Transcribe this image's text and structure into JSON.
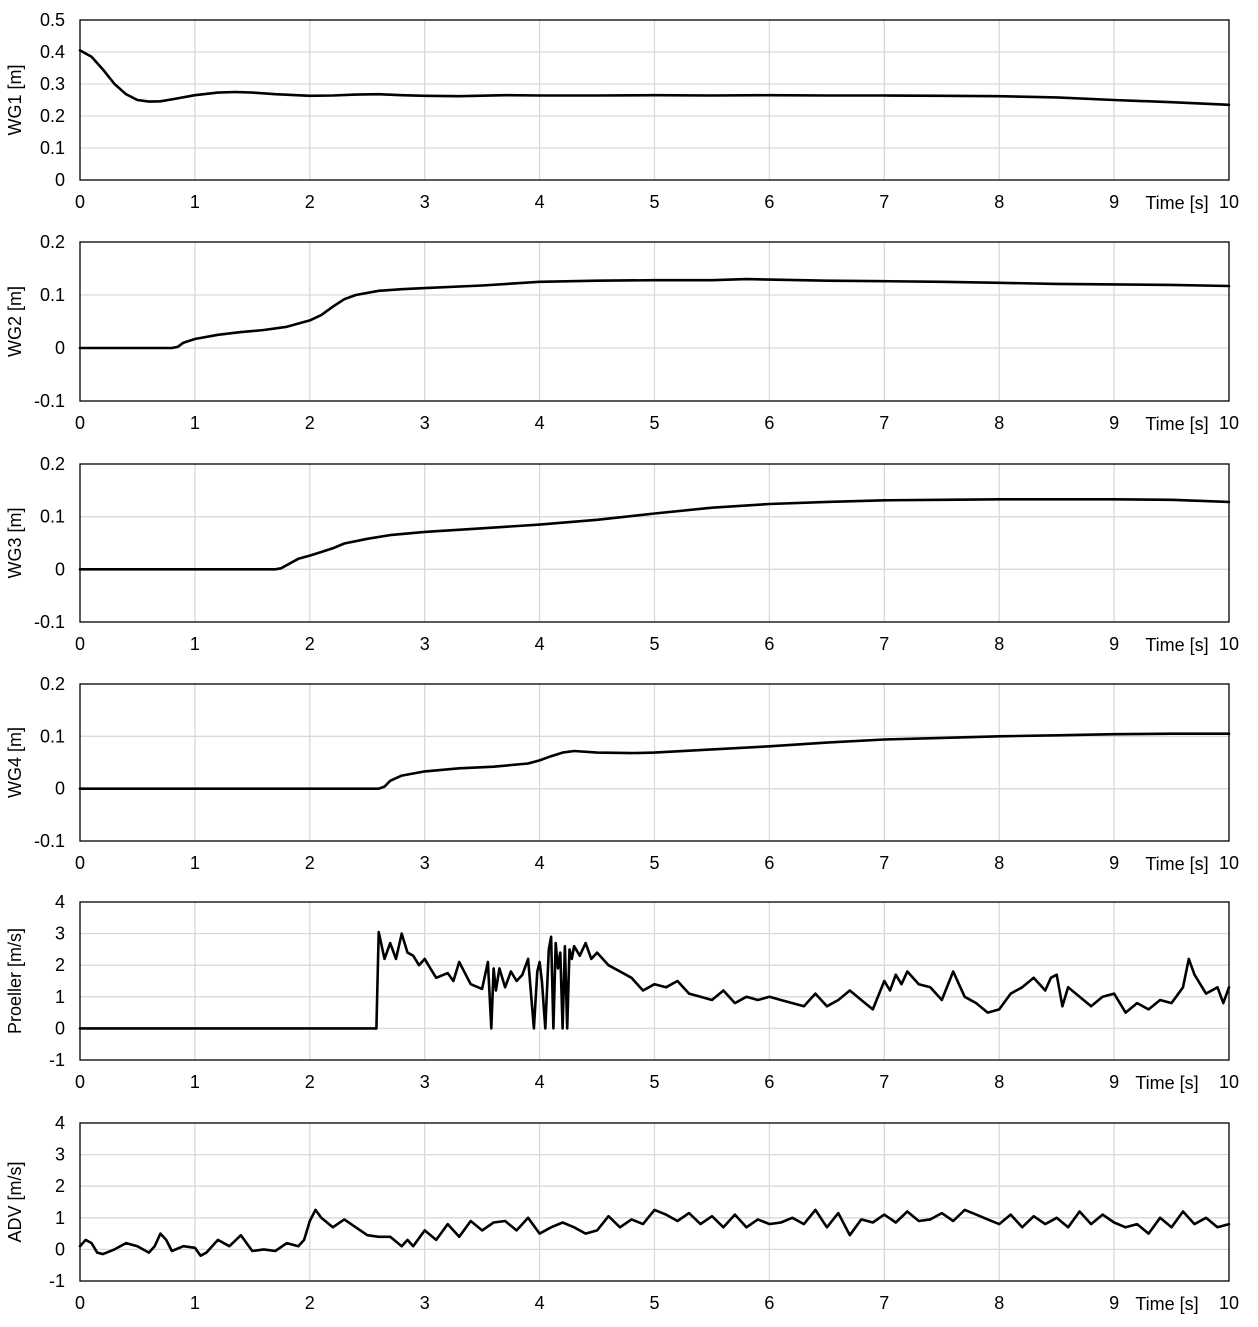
{
  "chart_data": [
    {
      "type": "line",
      "ylabel": "WG1 [m]",
      "xlabel": "Time [s]",
      "xlim": [
        0,
        10
      ],
      "ylim": [
        0,
        0.5
      ],
      "xticks": [
        "0",
        "1",
        "2",
        "3",
        "4",
        "5",
        "6",
        "7",
        "8",
        "9",
        "10"
      ],
      "yticks": [
        "0",
        "0.1",
        "0.2",
        "0.3",
        "0.4",
        "0.5"
      ],
      "grid": true,
      "series": [
        {
          "x": [
            0,
            0.1,
            0.2,
            0.3,
            0.4,
            0.5,
            0.6,
            0.7,
            0.8,
            1.0,
            1.2,
            1.35,
            1.5,
            1.7,
            2.0,
            2.2,
            2.4,
            2.6,
            2.8,
            3.0,
            3.3,
            3.7,
            4.0,
            4.5,
            5.0,
            5.5,
            6.0,
            6.5,
            7.0,
            7.5,
            8.0,
            8.5,
            9.0,
            9.5,
            10.0
          ],
          "values": [
            0.405,
            0.385,
            0.345,
            0.3,
            0.268,
            0.25,
            0.245,
            0.246,
            0.252,
            0.265,
            0.273,
            0.275,
            0.273,
            0.268,
            0.263,
            0.264,
            0.267,
            0.268,
            0.265,
            0.263,
            0.262,
            0.265,
            0.264,
            0.264,
            0.265,
            0.264,
            0.265,
            0.264,
            0.264,
            0.263,
            0.262,
            0.258,
            0.25,
            0.243,
            0.235
          ]
        }
      ]
    },
    {
      "type": "line",
      "ylabel": "WG2 [m]",
      "xlabel": "Time [s]",
      "xlim": [
        0,
        10
      ],
      "ylim": [
        -0.1,
        0.2
      ],
      "xticks": [
        "0",
        "1",
        "2",
        "3",
        "4",
        "5",
        "6",
        "7",
        "8",
        "9",
        "10"
      ],
      "yticks": [
        "-0.1",
        "0",
        "0.1",
        "0.2"
      ],
      "grid": true,
      "series": [
        {
          "x": [
            0,
            0.8,
            0.85,
            0.9,
            1.0,
            1.2,
            1.4,
            1.6,
            1.8,
            2.0,
            2.1,
            2.2,
            2.3,
            2.4,
            2.6,
            2.8,
            3.0,
            3.5,
            4.0,
            4.5,
            5.0,
            5.5,
            5.8,
            6.0,
            6.5,
            7.0,
            7.5,
            8.0,
            8.5,
            9.0,
            9.5,
            10.0
          ],
          "values": [
            0,
            0,
            0.002,
            0.01,
            0.017,
            0.025,
            0.03,
            0.034,
            0.04,
            0.052,
            0.062,
            0.078,
            0.092,
            0.1,
            0.108,
            0.111,
            0.113,
            0.118,
            0.125,
            0.127,
            0.128,
            0.128,
            0.13,
            0.129,
            0.127,
            0.126,
            0.125,
            0.123,
            0.121,
            0.12,
            0.119,
            0.117
          ]
        }
      ]
    },
    {
      "type": "line",
      "ylabel": "WG3 [m]",
      "xlabel": "Time [s]",
      "xlim": [
        0,
        10
      ],
      "ylim": [
        -0.1,
        0.2
      ],
      "xticks": [
        "0",
        "1",
        "2",
        "3",
        "4",
        "5",
        "6",
        "7",
        "8",
        "9",
        "10"
      ],
      "yticks": [
        "-0.1",
        "0",
        "0.1",
        "0.2"
      ],
      "grid": true,
      "series": [
        {
          "x": [
            0,
            1.7,
            1.75,
            1.8,
            1.9,
            2.0,
            2.1,
            2.2,
            2.3,
            2.5,
            2.7,
            3.0,
            3.5,
            4.0,
            4.5,
            5.0,
            5.5,
            6.0,
            6.5,
            7.0,
            7.5,
            8.0,
            8.5,
            9.0,
            9.5,
            10.0
          ],
          "values": [
            0,
            0,
            0.002,
            0.008,
            0.02,
            0.026,
            0.033,
            0.04,
            0.049,
            0.058,
            0.065,
            0.071,
            0.078,
            0.085,
            0.094,
            0.106,
            0.117,
            0.124,
            0.128,
            0.131,
            0.132,
            0.133,
            0.133,
            0.133,
            0.132,
            0.128
          ]
        }
      ]
    },
    {
      "type": "line",
      "ylabel": "WG4 [m]",
      "xlabel": "Time [s]",
      "xlim": [
        0,
        10
      ],
      "ylim": [
        -0.1,
        0.2
      ],
      "xticks": [
        "0",
        "1",
        "2",
        "3",
        "4",
        "5",
        "6",
        "7",
        "8",
        "9",
        "10"
      ],
      "yticks": [
        "-0.1",
        "0",
        "0.1",
        "0.2"
      ],
      "grid": true,
      "series": [
        {
          "x": [
            0,
            2.6,
            2.65,
            2.7,
            2.8,
            3.0,
            3.3,
            3.6,
            3.9,
            4.0,
            4.1,
            4.2,
            4.3,
            4.5,
            4.8,
            5.0,
            5.5,
            6.0,
            6.5,
            7.0,
            7.5,
            8.0,
            8.5,
            9.0,
            9.5,
            10.0
          ],
          "values": [
            0,
            0,
            0.004,
            0.015,
            0.025,
            0.033,
            0.039,
            0.042,
            0.048,
            0.054,
            0.062,
            0.069,
            0.072,
            0.069,
            0.068,
            0.069,
            0.075,
            0.081,
            0.088,
            0.094,
            0.097,
            0.1,
            0.102,
            0.104,
            0.105,
            0.105
          ]
        }
      ]
    },
    {
      "type": "line",
      "ylabel": "Proeller [m/s]",
      "xlabel": "Time [s]",
      "xlim": [
        0,
        10
      ],
      "ylim": [
        -1,
        4
      ],
      "xticks": [
        "0",
        "1",
        "2",
        "3",
        "4",
        "5",
        "6",
        "7",
        "8",
        "9",
        "10"
      ],
      "yticks": [
        "-1",
        "0",
        "1",
        "2",
        "3",
        "4"
      ],
      "grid": true,
      "series": [
        {
          "x": [
            0,
            2.58,
            2.6,
            2.65,
            2.7,
            2.75,
            2.8,
            2.85,
            2.9,
            2.95,
            3.0,
            3.05,
            3.1,
            3.2,
            3.25,
            3.3,
            3.4,
            3.5,
            3.55,
            3.58,
            3.6,
            3.62,
            3.65,
            3.7,
            3.75,
            3.8,
            3.85,
            3.9,
            3.95,
            3.98,
            4.0,
            4.02,
            4.05,
            4.08,
            4.1,
            4.12,
            4.14,
            4.16,
            4.18,
            4.2,
            4.22,
            4.24,
            4.26,
            4.28,
            4.3,
            4.35,
            4.4,
            4.45,
            4.5,
            4.6,
            4.7,
            4.8,
            4.9,
            5.0,
            5.1,
            5.2,
            5.3,
            5.4,
            5.5,
            5.6,
            5.7,
            5.8,
            5.9,
            6.0,
            6.1,
            6.2,
            6.3,
            6.4,
            6.5,
            6.6,
            6.7,
            6.8,
            6.9,
            7.0,
            7.05,
            7.1,
            7.15,
            7.2,
            7.3,
            7.4,
            7.5,
            7.6,
            7.7,
            7.8,
            7.9,
            8.0,
            8.1,
            8.2,
            8.3,
            8.4,
            8.45,
            8.5,
            8.55,
            8.6,
            8.7,
            8.8,
            8.9,
            9.0,
            9.1,
            9.2,
            9.3,
            9.4,
            9.5,
            9.6,
            9.65,
            9.7,
            9.75,
            9.8,
            9.9,
            9.95,
            10.0
          ],
          "values": [
            0,
            0,
            3.05,
            2.2,
            2.7,
            2.2,
            3.0,
            2.4,
            2.3,
            2.0,
            2.2,
            1.9,
            1.6,
            1.75,
            1.5,
            2.1,
            1.4,
            1.25,
            2.1,
            0,
            1.9,
            1.2,
            1.9,
            1.3,
            1.8,
            1.5,
            1.7,
            2.2,
            0,
            1.8,
            2.1,
            1.5,
            0,
            2.5,
            2.9,
            0,
            2.7,
            1.9,
            2.4,
            0,
            2.6,
            0,
            2.5,
            2.2,
            2.6,
            2.3,
            2.7,
            2.2,
            2.4,
            2.0,
            1.8,
            1.6,
            1.2,
            1.4,
            1.3,
            1.5,
            1.1,
            1.0,
            0.9,
            1.2,
            0.8,
            1.0,
            0.9,
            1.0,
            0.9,
            0.8,
            0.7,
            1.1,
            0.7,
            0.9,
            1.2,
            0.9,
            0.6,
            1.5,
            1.2,
            1.7,
            1.4,
            1.8,
            1.4,
            1.3,
            0.9,
            1.8,
            1.0,
            0.8,
            0.5,
            0.6,
            1.1,
            1.3,
            1.6,
            1.2,
            1.6,
            1.7,
            0.7,
            1.3,
            1.0,
            0.7,
            1.0,
            1.1,
            0.5,
            0.8,
            0.6,
            0.9,
            0.8,
            1.3,
            2.2,
            1.7,
            1.4,
            1.1,
            1.3,
            0.8,
            1.3
          ]
        }
      ]
    },
    {
      "type": "line",
      "ylabel": "ADV [m/s]",
      "xlabel": "Time [s]",
      "xlim": [
        0,
        10
      ],
      "ylim": [
        -1,
        4
      ],
      "xticks": [
        "0",
        "1",
        "2",
        "3",
        "4",
        "5",
        "6",
        "7",
        "8",
        "9",
        "10"
      ],
      "yticks": [
        "-1",
        "0",
        "1",
        "2",
        "3",
        "4"
      ],
      "grid": true,
      "series": [
        {
          "x": [
            0,
            0.05,
            0.1,
            0.15,
            0.2,
            0.3,
            0.4,
            0.5,
            0.6,
            0.65,
            0.7,
            0.75,
            0.8,
            0.9,
            1.0,
            1.05,
            1.1,
            1.2,
            1.3,
            1.4,
            1.5,
            1.6,
            1.7,
            1.8,
            1.9,
            1.95,
            2.0,
            2.05,
            2.1,
            2.2,
            2.3,
            2.4,
            2.5,
            2.6,
            2.7,
            2.8,
            2.85,
            2.9,
            3.0,
            3.1,
            3.2,
            3.3,
            3.4,
            3.5,
            3.6,
            3.7,
            3.8,
            3.9,
            4.0,
            4.1,
            4.2,
            4.3,
            4.4,
            4.5,
            4.6,
            4.7,
            4.8,
            4.9,
            5.0,
            5.1,
            5.2,
            5.3,
            5.4,
            5.5,
            5.6,
            5.7,
            5.8,
            5.9,
            6.0,
            6.1,
            6.2,
            6.3,
            6.4,
            6.5,
            6.6,
            6.7,
            6.8,
            6.9,
            7.0,
            7.1,
            7.2,
            7.3,
            7.4,
            7.5,
            7.6,
            7.7,
            7.8,
            7.9,
            8.0,
            8.1,
            8.2,
            8.3,
            8.4,
            8.5,
            8.6,
            8.7,
            8.8,
            8.9,
            9.0,
            9.1,
            9.2,
            9.3,
            9.4,
            9.5,
            9.6,
            9.7,
            9.8,
            9.9,
            10.0
          ],
          "values": [
            0.1,
            0.3,
            0.2,
            -0.1,
            -0.15,
            0.0,
            0.2,
            0.1,
            -0.1,
            0.1,
            0.5,
            0.3,
            -0.05,
            0.1,
            0.05,
            -0.2,
            -0.1,
            0.3,
            0.1,
            0.45,
            -0.05,
            0.0,
            -0.05,
            0.2,
            0.1,
            0.3,
            0.9,
            1.25,
            1.0,
            0.7,
            0.95,
            0.7,
            0.45,
            0.4,
            0.4,
            0.1,
            0.3,
            0.1,
            0.6,
            0.3,
            0.8,
            0.4,
            0.9,
            0.6,
            0.85,
            0.9,
            0.6,
            1.0,
            0.5,
            0.7,
            0.85,
            0.7,
            0.5,
            0.6,
            1.05,
            0.7,
            0.95,
            0.8,
            1.25,
            1.1,
            0.9,
            1.15,
            0.8,
            1.05,
            0.7,
            1.1,
            0.7,
            0.95,
            0.8,
            0.85,
            1.0,
            0.8,
            1.25,
            0.7,
            1.15,
            0.45,
            0.95,
            0.85,
            1.1,
            0.85,
            1.2,
            0.9,
            0.95,
            1.15,
            0.9,
            1.25,
            1.1,
            0.95,
            0.8,
            1.1,
            0.7,
            1.05,
            0.8,
            1.0,
            0.7,
            1.2,
            0.8,
            1.1,
            0.85,
            0.7,
            0.8,
            0.5,
            1.0,
            0.7,
            1.2,
            0.8,
            1.0,
            0.7,
            0.8
          ]
        }
      ]
    }
  ]
}
